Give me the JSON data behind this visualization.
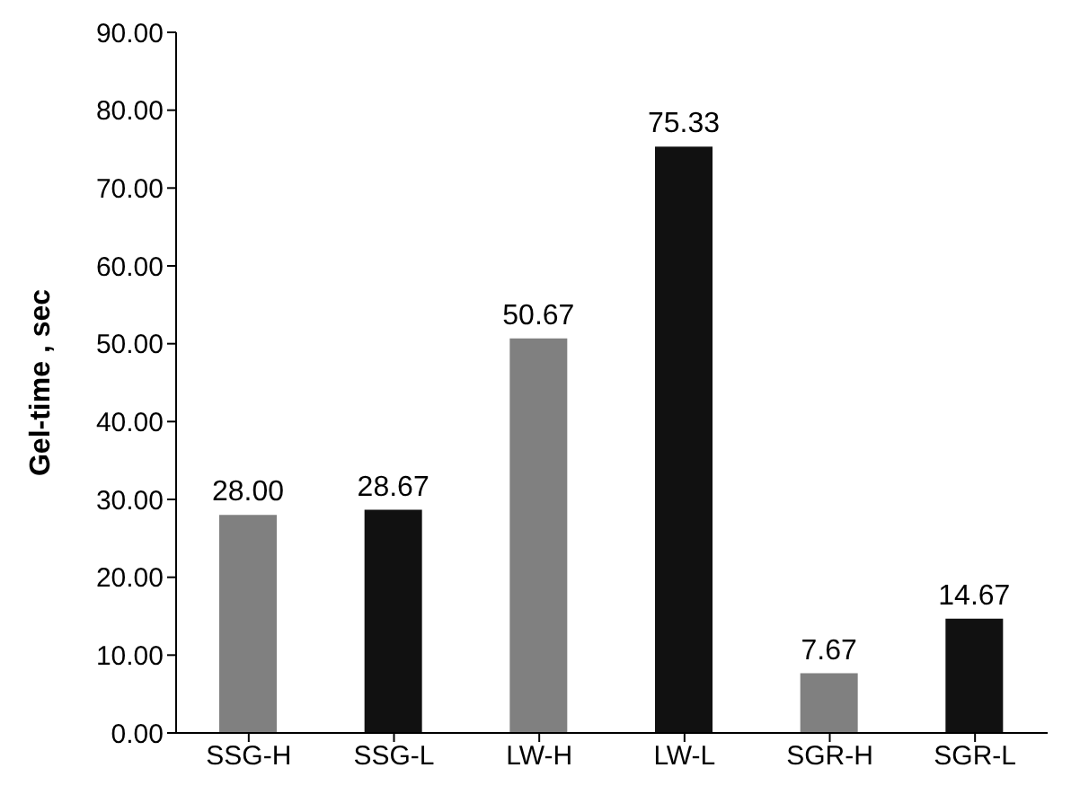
{
  "chart_data": {
    "type": "bar",
    "ylabel": "Gel-time , sec",
    "categories": [
      "SSG-H",
      "SSG-L",
      "LW-H",
      "LW-L",
      "SGR-H",
      "SGR-L"
    ],
    "values": [
      28.0,
      28.67,
      50.67,
      75.33,
      7.67,
      14.67
    ],
    "colors": [
      "#808080",
      "#111111",
      "#808080",
      "#111111",
      "#808080",
      "#111111"
    ],
    "value_labels": [
      "28.00",
      "28.67",
      "50.67",
      "75.33",
      "7.67",
      "14.67"
    ],
    "ylim": [
      0,
      90
    ],
    "yticks": [
      {
        "value": 0,
        "label": "0.00"
      },
      {
        "value": 10,
        "label": "10.00"
      },
      {
        "value": 20,
        "label": "20.00"
      },
      {
        "value": 30,
        "label": "30.00"
      },
      {
        "value": 40,
        "label": "40.00"
      },
      {
        "value": 50,
        "label": "50.00"
      },
      {
        "value": 60,
        "label": "60.00"
      },
      {
        "value": 70,
        "label": "70.00"
      },
      {
        "value": 80,
        "label": "80.00"
      },
      {
        "value": 90,
        "label": "90.00"
      }
    ],
    "grid": false,
    "legend": false
  }
}
